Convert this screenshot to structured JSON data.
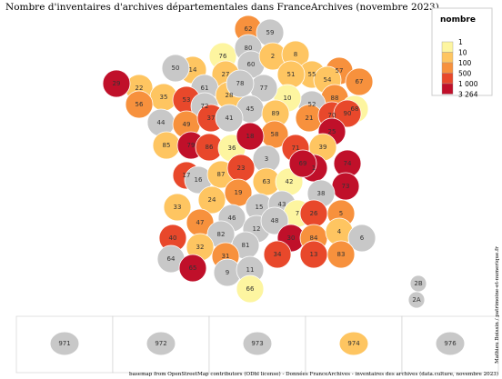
{
  "title": "Nombre d'inventaires d'archives départementales dans FranceArchives (novembre 2023)",
  "legend": {
    "title": "nombre",
    "breaks": [
      1,
      10,
      100,
      500,
      {
        "value": 1000,
        "label": "1 000"
      },
      {
        "value": 3264,
        "label": "3 264"
      }
    ],
    "colors": [
      "#fdf5a0",
      "#fec561",
      "#f7913d",
      "#e8482b",
      "#c0102a"
    ]
  },
  "departments": [
    {
      "code": "76",
      "color": "#fdf5a0"
    },
    {
      "code": "62",
      "color": "#f7913d"
    },
    {
      "code": "59",
      "color": "#c8c8c8"
    },
    {
      "code": "80",
      "color": "#c8c8c8"
    },
    {
      "code": "60",
      "color": "#c8c8c8"
    },
    {
      "code": "2",
      "color": "#fec561"
    },
    {
      "code": "8",
      "color": "#fec561"
    },
    {
      "code": "55",
      "color": "#fec561"
    },
    {
      "code": "57",
      "color": "#f7913d"
    },
    {
      "code": "67",
      "color": "#f7913d"
    },
    {
      "code": "54",
      "color": "#fec561"
    },
    {
      "code": "51",
      "color": "#fec561"
    },
    {
      "code": "88",
      "color": "#f7913d"
    },
    {
      "code": "68",
      "color": "#fdf5a0"
    },
    {
      "code": "52",
      "color": "#c8c8c8"
    },
    {
      "code": "10",
      "color": "#fdf5a0"
    },
    {
      "code": "77",
      "color": "#c8c8c8"
    },
    {
      "code": "27",
      "color": "#fec561"
    },
    {
      "code": "14",
      "color": "#fec561"
    },
    {
      "code": "50",
      "color": "#c8c8c8"
    },
    {
      "code": "61",
      "color": "#c8c8c8"
    },
    {
      "code": "28",
      "color": "#fec561"
    },
    {
      "code": "78",
      "color": "#c8c8c8"
    },
    {
      "code": "22",
      "color": "#fec561"
    },
    {
      "code": "29",
      "color": "#c0102a"
    },
    {
      "code": "35",
      "color": "#fec561"
    },
    {
      "code": "56",
      "color": "#f7913d"
    },
    {
      "code": "53",
      "color": "#e8482b"
    },
    {
      "code": "72",
      "color": "#c8c8c8"
    },
    {
      "code": "45",
      "color": "#c8c8c8"
    },
    {
      "code": "89",
      "color": "#fec561"
    },
    {
      "code": "21",
      "color": "#f7913d"
    },
    {
      "code": "70",
      "color": "#e8482b"
    },
    {
      "code": "90",
      "color": "#e8482b"
    },
    {
      "code": "25",
      "color": "#c0102a"
    },
    {
      "code": "44",
      "color": "#c8c8c8"
    },
    {
      "code": "49",
      "color": "#f7913d"
    },
    {
      "code": "37",
      "color": "#e8482b"
    },
    {
      "code": "41",
      "color": "#c8c8c8"
    },
    {
      "code": "58",
      "color": "#f7913d"
    },
    {
      "code": "71",
      "color": "#e8482b"
    },
    {
      "code": "39",
      "color": "#fec561"
    },
    {
      "code": "85",
      "color": "#fec561"
    },
    {
      "code": "79",
      "color": "#c0102a"
    },
    {
      "code": "86",
      "color": "#e8482b"
    },
    {
      "code": "36",
      "color": "#fdf5a0"
    },
    {
      "code": "18",
      "color": "#c0102a"
    },
    {
      "code": "3",
      "color": "#c8c8c8"
    },
    {
      "code": "1",
      "color": "#c0102a"
    },
    {
      "code": "74",
      "color": "#c0102a"
    },
    {
      "code": "17",
      "color": "#e8482b"
    },
    {
      "code": "16",
      "color": "#c8c8c8"
    },
    {
      "code": "87",
      "color": "#fec561"
    },
    {
      "code": "23",
      "color": "#e8482b"
    },
    {
      "code": "63",
      "color": "#fec561"
    },
    {
      "code": "42",
      "color": "#fdf5a0"
    },
    {
      "code": "69",
      "color": "#c0102a"
    },
    {
      "code": "73",
      "color": "#c0102a"
    },
    {
      "code": "38",
      "color": "#c8c8c8"
    },
    {
      "code": "33",
      "color": "#fec561"
    },
    {
      "code": "24",
      "color": "#fec561"
    },
    {
      "code": "19",
      "color": "#f7913d"
    },
    {
      "code": "15",
      "color": "#c8c8c8"
    },
    {
      "code": "43",
      "color": "#c8c8c8"
    },
    {
      "code": "7",
      "color": "#fdf5a0"
    },
    {
      "code": "26",
      "color": "#e8482b"
    },
    {
      "code": "5",
      "color": "#f7913d"
    },
    {
      "code": "47",
      "color": "#f7913d"
    },
    {
      "code": "46",
      "color": "#c8c8c8"
    },
    {
      "code": "12",
      "color": "#c8c8c8"
    },
    {
      "code": "48",
      "color": "#c8c8c8"
    },
    {
      "code": "40",
      "color": "#e8482b"
    },
    {
      "code": "82",
      "color": "#c8c8c8"
    },
    {
      "code": "81",
      "color": "#c8c8c8"
    },
    {
      "code": "30",
      "color": "#c0102a"
    },
    {
      "code": "84",
      "color": "#f7913d"
    },
    {
      "code": "4",
      "color": "#fec561"
    },
    {
      "code": "6",
      "color": "#c8c8c8"
    },
    {
      "code": "32",
      "color": "#fec561"
    },
    {
      "code": "64",
      "color": "#c8c8c8"
    },
    {
      "code": "65",
      "color": "#c0102a"
    },
    {
      "code": "31",
      "color": "#f7913d"
    },
    {
      "code": "34",
      "color": "#e8482b"
    },
    {
      "code": "13",
      "color": "#e8482b"
    },
    {
      "code": "83",
      "color": "#f7913d"
    },
    {
      "code": "9",
      "color": "#c8c8c8"
    },
    {
      "code": "11",
      "color": "#c8c8c8"
    },
    {
      "code": "66",
      "color": "#fdf5a0"
    },
    {
      "code": "2B",
      "color": "#c8c8c8"
    },
    {
      "code": "2A",
      "color": "#c8c8c8"
    }
  ],
  "overseas": [
    {
      "code": "971",
      "color": "#c8c8c8"
    },
    {
      "code": "972",
      "color": "#c8c8c8"
    },
    {
      "code": "973",
      "color": "#c8c8c8"
    },
    {
      "code": "974",
      "color": "#fec561"
    },
    {
      "code": "976",
      "color": "#c8c8c8"
    }
  ],
  "source": "basemap from OpenStreetMap contributors (ODbl license) - Données FranceArchives - inventaires des archives (data.culture, novembre 2023)",
  "author": "Mathieu Boissin / patrimoine-et-numerique.fr"
}
